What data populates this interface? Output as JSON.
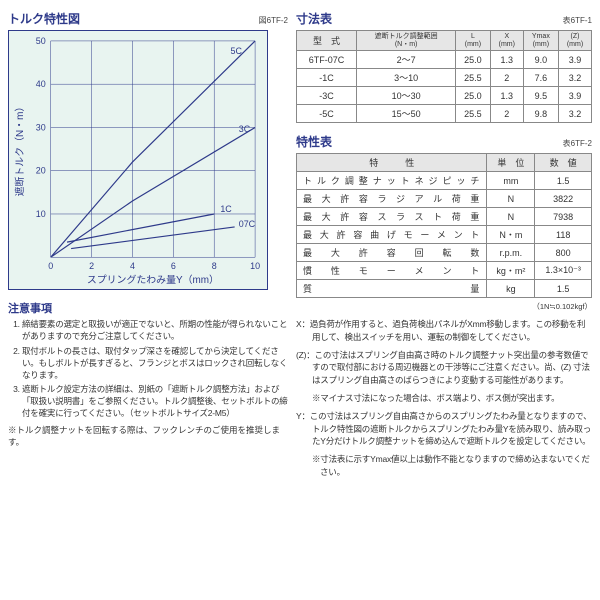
{
  "chart": {
    "title": "トルク特性図",
    "subtitle": "図6TF-2",
    "background": "#e8f4f0",
    "border_color": "#2e3a8a",
    "line_color": "#2e3a8a",
    "xlabel": "スプリングたわみ量Y（mm）",
    "ylabel": "遮断トルク（N・m）",
    "xlim": [
      0,
      10
    ],
    "xtick_step": 2,
    "ylim": [
      0,
      50
    ],
    "ytick_step": 10,
    "series": [
      {
        "name": "5C",
        "pts": [
          [
            0,
            0
          ],
          [
            4,
            22
          ],
          [
            10,
            50
          ]
        ],
        "lx": 8.8,
        "ly": 47
      },
      {
        "name": "3C",
        "pts": [
          [
            0,
            0
          ],
          [
            4,
            13
          ],
          [
            10,
            30
          ]
        ],
        "lx": 9.2,
        "ly": 29
      },
      {
        "name": "1C",
        "pts": [
          [
            0.8,
            3.5
          ],
          [
            8,
            10
          ]
        ],
        "lx": 8.3,
        "ly": 10.5
      },
      {
        "name": "07C",
        "pts": [
          [
            1,
            2
          ],
          [
            9,
            7
          ]
        ],
        "lx": 9.2,
        "ly": 7
      }
    ]
  },
  "notes": {
    "title": "注意事項",
    "items": [
      "締結要素の選定と取扱いが適正でないと、所期の性能が得られないことがありますので充分ご注意してください。",
      "取付ボルトの長さは、取付タップ深さを確認してから決定してください。もしボルトが長すぎると、フランジとボスはロックされ回転しなくなります。",
      "遮断トルク設定方法の詳細は、別紙の「遮断トルク調整方法」および「取扱い説明書」をご参照ください。トルク調整後、セットボルトの締付を確実に行ってください。（セットボルトサイズ2-M5）"
    ],
    "foot": "※トルク調整ナットを回転する際は、フックレンチのご使用を推奨します。"
  },
  "dim_table": {
    "title": "寸法表",
    "subtitle": "表6TF-1",
    "headers": [
      "型　式",
      "遮断トルク調整範囲|(N・m)",
      "L|(mm)",
      "X|(mm)",
      "Ymax|(mm)",
      "(Z)|(mm)"
    ],
    "rows": [
      [
        "6TF-07C",
        "2～7",
        "25.0",
        "1.3",
        "9.0",
        "3.9"
      ],
      [
        "-1C",
        "3～10",
        "25.5",
        "2",
        "7.6",
        "3.2"
      ],
      [
        "-3C",
        "10～30",
        "25.0",
        "1.3",
        "9.5",
        "3.9"
      ],
      [
        "-5C",
        "15～50",
        "25.5",
        "2",
        "9.8",
        "3.2"
      ]
    ]
  },
  "spec_table": {
    "title": "特性表",
    "subtitle": "表6TF-2",
    "headers": [
      "特　　　性",
      "単　位",
      "数　値"
    ],
    "rows": [
      [
        "トルク調整ナットネジピッチ",
        "mm",
        "1.5"
      ],
      [
        "最大許容ラジアル荷重",
        "N",
        "3822"
      ],
      [
        "最大許容スラスト荷重",
        "N",
        "7938"
      ],
      [
        "最大許容曲げモーメント",
        "N・m",
        "118"
      ],
      [
        "最 大 許 容 回 転 数",
        "r.p.m.",
        "800"
      ],
      [
        "慣 性 モ ー メ ン ト",
        "kg・m²",
        "1.3×10⁻³"
      ],
      [
        "質　　　　　量",
        "kg",
        "1.5"
      ]
    ],
    "footnote": "（1N≒0.102kgf）"
  },
  "right_notes": [
    {
      "k": "X：",
      "t": "過負荷が作用すると、過負荷検出パネルがXmm移動します。この移動を利用して、検出スイッチを用い、運転の制御をしてください。"
    },
    {
      "k": "(Z)：",
      "t": "この寸法はスプリング自由高さ時のトルク調整ナット突出量の参考数値ですので取付部における周辺機器との干渉等にご注意ください。尚、(Z) 寸法はスプリング自由高さのばらつきにより変動する可能性があります。"
    },
    {
      "k": "",
      "t": "※マイナス寸法になった場合は、ボス端より、ボス側が突出ます。",
      "sub": true
    },
    {
      "k": "Y：",
      "t": "この寸法はスプリング自由高さからのスプリングたわみ量となりますので、トルク特性図の遮断トルクからスプリングたわみ量Yを読み取り、読み取ったY分だけトルク調整ナットを締め込んで遮断トルクを設定してください。"
    },
    {
      "k": "",
      "t": "※寸法表に示すYmax値以上は動作不能となりますので締め込まないでください。",
      "sub": true
    }
  ]
}
